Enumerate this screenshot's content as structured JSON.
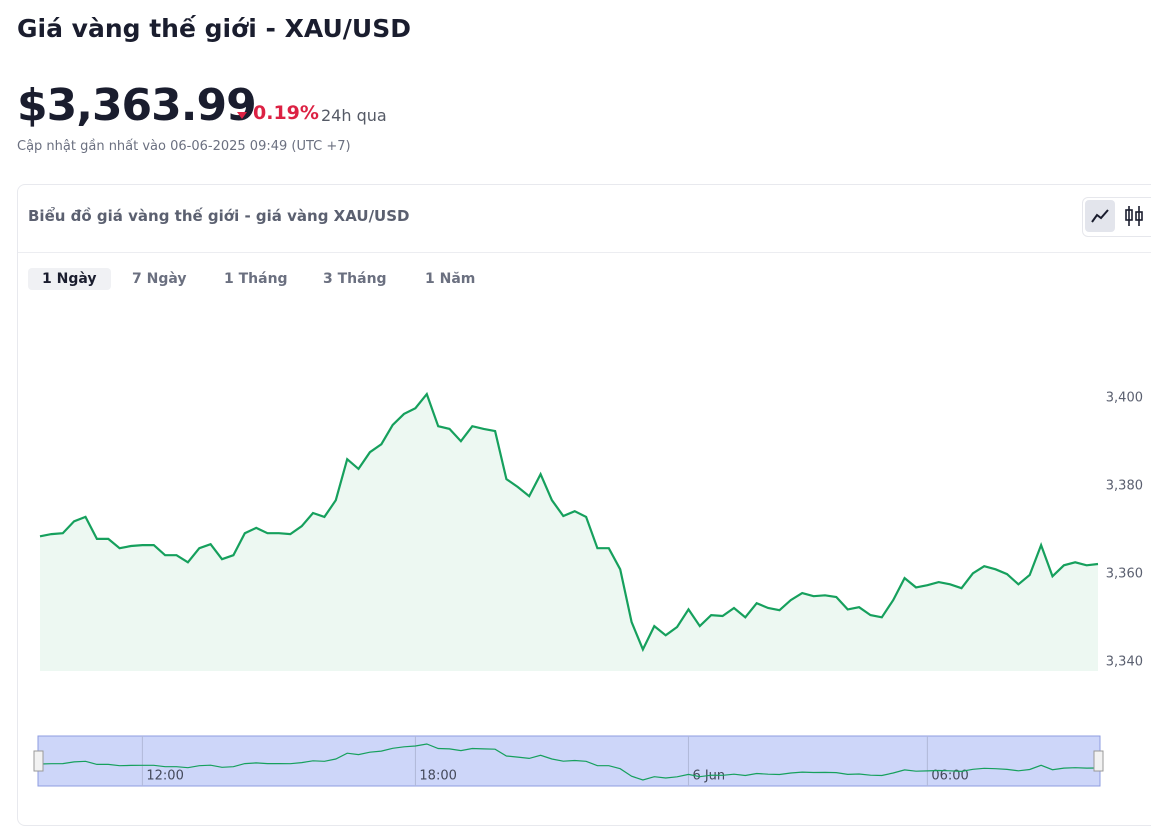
{
  "header": {
    "title": "Giá vàng thế giới - XAU/USD",
    "price": "$3,363.99",
    "change": "0.19%",
    "period": "24h qua",
    "updated": "Cập nhật gần nhất vào 06-06-2025 09:49 (UTC +7)"
  },
  "card": {
    "title": "Biểu đồ giá vàng thế giới - giá vàng XAU/USD",
    "tabs": [
      "1 Ngày",
      "7 Ngày",
      "1 Tháng",
      "3 Tháng",
      "1 Năm"
    ]
  },
  "chart_data": {
    "type": "line",
    "color": "#16a05d",
    "series": [
      {
        "name": "XAU/USD",
        "color": "#16a05d",
        "values": [
          3368.6,
          3369.1,
          3369.3,
          3372.0,
          3373.0,
          3368.0,
          3368.0,
          3365.9,
          3366.4,
          3366.6,
          3366.6,
          3364.3,
          3364.3,
          3362.7,
          3365.9,
          3366.8,
          3363.4,
          3364.3,
          3369.3,
          3370.5,
          3369.3,
          3369.3,
          3369.1,
          3370.9,
          3373.9,
          3373.0,
          3376.8,
          3386.1,
          3383.9,
          3387.7,
          3389.5,
          3393.9,
          3396.4,
          3397.7,
          3400.9,
          3393.6,
          3393.0,
          3390.2,
          3393.6,
          3393.0,
          3392.5,
          3381.6,
          3379.8,
          3377.7,
          3382.7,
          3376.8,
          3373.2,
          3374.3,
          3373.0,
          3365.9,
          3365.9,
          3361.1,
          3349.1,
          3342.9,
          3348.2,
          3346.1,
          3348.0,
          3352.0,
          3348.2,
          3350.7,
          3350.5,
          3352.3,
          3350.2,
          3353.4,
          3352.3,
          3351.8,
          3354.1,
          3355.7,
          3355.0,
          3355.2,
          3354.8,
          3352.0,
          3352.5,
          3350.7,
          3350.2,
          3354.1,
          3359.1,
          3357.0,
          3357.5,
          3358.2,
          3357.7,
          3356.8,
          3360.2,
          3361.8,
          3361.1,
          3360.0,
          3357.7,
          3359.8,
          3366.6,
          3359.5,
          3362.0,
          3362.7,
          3362.0,
          3362.3
        ]
      }
    ],
    "ylim": [
      3338,
      3420
    ],
    "yticks": [
      {
        "value": 3340,
        "label": "3,340"
      },
      {
        "value": 3360,
        "label": "3,360"
      },
      {
        "value": 3380,
        "label": "3,380"
      },
      {
        "value": 3400,
        "label": "3,400"
      }
    ],
    "xlim": [
      0,
      93
    ],
    "xticks": [
      {
        "value": 9,
        "label": "12:00"
      },
      {
        "value": 33,
        "label": "18:00"
      },
      {
        "value": 57,
        "label": "6 Jun"
      },
      {
        "value": 78,
        "label": "06:00"
      }
    ]
  }
}
